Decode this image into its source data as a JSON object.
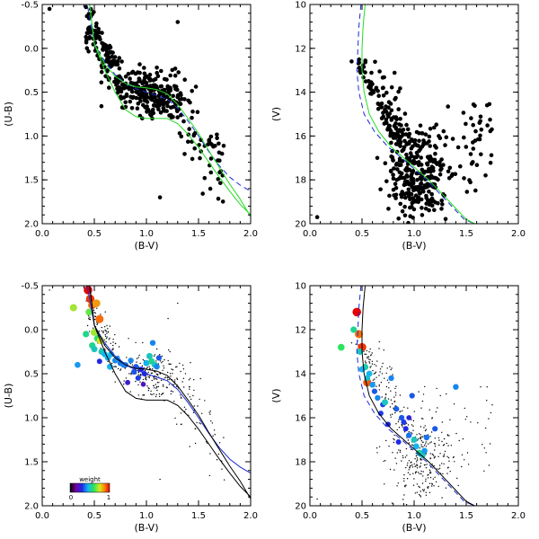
{
  "figure": {
    "description_free": true
  },
  "chart_data": [
    {
      "id": "ccd-ub-top",
      "type": "scatter",
      "title": "",
      "xlabel": "(B-V)",
      "ylabel": "(U-B)",
      "xlim": [
        0.0,
        2.0
      ],
      "ylim": [
        2.0,
        -0.5
      ],
      "xticks": [
        "0.0",
        "0.5",
        "1.0",
        "1.5",
        "2.0"
      ],
      "yticks": [
        "-0.5",
        "0.0",
        "0.5",
        "1.0",
        "1.5",
        "2.0"
      ],
      "series": [
        {
          "name": "stars",
          "style": "dots-large",
          "points": "cloud-ccd",
          "n": 420
        },
        {
          "name": "isochrone-blue",
          "style": "dashed",
          "color": "#1a2bd6",
          "x": [
            0.42,
            0.5,
            0.6,
            0.7,
            0.8,
            0.9,
            1.0,
            1.1,
            1.2,
            1.3,
            1.4,
            1.5,
            1.6,
            1.7,
            1.8,
            1.9,
            2.0
          ],
          "y": [
            -0.58,
            -0.05,
            0.15,
            0.3,
            0.4,
            0.46,
            0.5,
            0.54,
            0.58,
            0.68,
            0.83,
            1.0,
            1.18,
            1.34,
            1.47,
            1.56,
            1.63
          ]
        },
        {
          "name": "isochrone-green-upper",
          "style": "solid",
          "color": "#22dd22",
          "x": [
            0.45,
            0.5,
            0.6,
            0.7,
            0.8,
            0.9,
            1.0,
            1.1,
            1.2,
            1.3,
            1.4,
            1.5,
            1.6,
            1.7,
            1.8,
            1.9,
            2.0
          ],
          "y": [
            -0.55,
            -0.05,
            0.18,
            0.32,
            0.4,
            0.44,
            0.45,
            0.47,
            0.52,
            0.64,
            0.8,
            0.97,
            1.17,
            1.36,
            1.55,
            1.72,
            1.92
          ]
        },
        {
          "name": "isochrone-green-lower",
          "style": "solid",
          "color": "#22dd22",
          "x": [
            0.45,
            0.5,
            0.6,
            0.7,
            0.8,
            0.9,
            1.0,
            1.1,
            1.2,
            1.3,
            1.4,
            1.5,
            1.6,
            1.7,
            1.8,
            1.9,
            2.0
          ],
          "y": [
            -0.55,
            -0.05,
            0.25,
            0.5,
            0.7,
            0.78,
            0.8,
            0.8,
            0.8,
            0.86,
            0.98,
            1.13,
            1.3,
            1.47,
            1.63,
            1.78,
            1.9
          ]
        }
      ]
    },
    {
      "id": "cmd-v-top",
      "type": "scatter",
      "title": "",
      "xlabel": "(B-V)",
      "ylabel": "(V)",
      "xlim": [
        0.0,
        2.0
      ],
      "ylim": [
        20,
        10
      ],
      "xticks": [
        "0.0",
        "0.5",
        "1.0",
        "1.5",
        "2.0"
      ],
      "yticks": [
        "10",
        "12",
        "14",
        "16",
        "18",
        "20"
      ],
      "series": [
        {
          "name": "stars",
          "style": "dots-large",
          "points": "cloud-cmd",
          "n": 450
        },
        {
          "name": "isochrone-blue",
          "style": "dashed",
          "color": "#1a2bd6",
          "x": [
            0.49,
            0.47,
            0.46,
            0.45,
            0.47,
            0.52,
            0.62,
            0.75,
            0.88,
            1.0,
            1.12,
            1.24,
            1.36,
            1.48,
            1.58
          ],
          "y": [
            10.0,
            11.0,
            12.0,
            13.0,
            14.0,
            15.0,
            15.8,
            16.5,
            17.0,
            17.5,
            18.0,
            18.6,
            19.2,
            19.8,
            20.0
          ]
        },
        {
          "name": "isochrone-green",
          "style": "solid",
          "color": "#22dd22",
          "x": [
            0.53,
            0.51,
            0.5,
            0.5,
            0.52,
            0.57,
            0.66,
            0.78,
            0.9,
            1.02,
            1.14,
            1.26,
            1.38,
            1.5,
            1.58
          ],
          "y": [
            10.0,
            11.0,
            12.0,
            13.0,
            14.0,
            15.0,
            15.8,
            16.5,
            17.0,
            17.5,
            18.0,
            18.6,
            19.2,
            19.8,
            20.0
          ]
        }
      ]
    },
    {
      "id": "ccd-ub-bottom",
      "type": "scatter",
      "title": "",
      "xlabel": "(B-V)",
      "ylabel": "(U-B)",
      "xlim": [
        0.0,
        2.0
      ],
      "ylim": [
        2.0,
        -0.5
      ],
      "xticks": [
        "0.0",
        "0.5",
        "1.0",
        "1.5",
        "2.0"
      ],
      "yticks": [
        "-0.5",
        "0.0",
        "0.5",
        "1.0",
        "1.5",
        "2.0"
      ],
      "colorbar": {
        "label": "weight",
        "min": "0",
        "max": "1"
      },
      "series": [
        {
          "name": "field-stars",
          "style": "dots-small",
          "points": "cloud-ccd-fine",
          "n": 380
        },
        {
          "name": "weighted-members",
          "style": "colored",
          "x": [
            0.44,
            0.46,
            0.48,
            0.52,
            0.55,
            0.45,
            0.5,
            0.3,
            0.42,
            0.53,
            0.56,
            0.48,
            0.5,
            0.57,
            0.6,
            0.63,
            0.7,
            0.75,
            0.8,
            0.85,
            0.9,
            0.95,
            1.0,
            1.05,
            1.08,
            1.1,
            0.98,
            0.92,
            0.88,
            0.78,
            0.72,
            0.66,
            1.03,
            1.06,
            1.12,
            0.55,
            0.65,
            0.82,
            0.97,
            0.34
          ],
          "y": [
            -0.45,
            -0.35,
            -0.28,
            -0.3,
            -0.12,
            -0.2,
            0.03,
            -0.25,
            0.05,
            0.1,
            0.12,
            0.18,
            0.22,
            0.25,
            0.28,
            0.32,
            0.35,
            0.38,
            0.4,
            0.35,
            0.42,
            0.45,
            0.38,
            0.36,
            0.4,
            0.42,
            0.5,
            0.55,
            0.48,
            0.4,
            0.33,
            0.28,
            0.3,
            0.15,
            0.32,
            0.36,
            0.42,
            0.6,
            0.62,
            0.4
          ],
          "w": [
            1.0,
            0.95,
            0.9,
            0.85,
            0.9,
            0.65,
            0.7,
            0.7,
            0.55,
            0.6,
            0.75,
            0.55,
            0.5,
            0.5,
            0.45,
            0.45,
            0.4,
            0.38,
            0.36,
            0.4,
            0.35,
            0.3,
            0.45,
            0.55,
            0.5,
            0.4,
            0.3,
            0.32,
            0.35,
            0.4,
            0.42,
            0.45,
            0.5,
            0.4,
            0.35,
            0.3,
            0.45,
            0.25,
            0.22,
            0.42
          ]
        },
        {
          "name": "isochrone-blue",
          "style": "solid",
          "color": "#1a2bd6",
          "x": [
            0.42,
            0.5,
            0.6,
            0.7,
            0.8,
            0.9,
            1.0,
            1.1,
            1.2,
            1.3,
            1.4,
            1.5,
            1.6,
            1.7,
            1.8,
            1.9,
            2.0
          ],
          "y": [
            -0.58,
            -0.05,
            0.15,
            0.3,
            0.4,
            0.46,
            0.5,
            0.54,
            0.58,
            0.68,
            0.83,
            1.0,
            1.18,
            1.34,
            1.47,
            1.56,
            1.63
          ]
        },
        {
          "name": "isochrone-black-upper",
          "style": "solid",
          "color": "#000000",
          "x": [
            0.45,
            0.5,
            0.6,
            0.7,
            0.8,
            0.9,
            1.0,
            1.1,
            1.2,
            1.3,
            1.4,
            1.5,
            1.6,
            1.7,
            1.8,
            1.9,
            2.0
          ],
          "y": [
            -0.55,
            -0.05,
            0.18,
            0.32,
            0.4,
            0.44,
            0.45,
            0.47,
            0.52,
            0.64,
            0.8,
            0.97,
            1.17,
            1.36,
            1.55,
            1.72,
            1.92
          ]
        },
        {
          "name": "isochrone-black-lower",
          "style": "solid",
          "color": "#000000",
          "x": [
            0.45,
            0.5,
            0.6,
            0.7,
            0.8,
            0.9,
            1.0,
            1.1,
            1.2,
            1.3,
            1.4,
            1.5,
            1.6,
            1.7,
            1.8,
            1.9,
            2.0
          ],
          "y": [
            -0.55,
            -0.05,
            0.25,
            0.5,
            0.7,
            0.78,
            0.8,
            0.8,
            0.8,
            0.86,
            0.98,
            1.13,
            1.3,
            1.47,
            1.63,
            1.78,
            1.9
          ]
        }
      ]
    },
    {
      "id": "cmd-v-bottom",
      "type": "scatter",
      "title": "",
      "xlabel": "(B-V)",
      "ylabel": "(V)",
      "xlim": [
        0.0,
        2.0
      ],
      "ylim": [
        20,
        10
      ],
      "xticks": [
        "0.0",
        "0.5",
        "1.0",
        "1.5",
        "2.0"
      ],
      "yticks": [
        "10",
        "12",
        "14",
        "16",
        "18",
        "20"
      ],
      "series": [
        {
          "name": "field-stars",
          "style": "dots-small",
          "points": "cloud-cmd-fine",
          "n": 420
        },
        {
          "name": "weighted-members",
          "style": "colored",
          "x": [
            0.45,
            0.47,
            0.5,
            0.55,
            0.3,
            0.42,
            0.48,
            0.53,
            0.57,
            0.6,
            0.62,
            0.65,
            0.7,
            0.72,
            0.78,
            0.83,
            0.88,
            0.92,
            0.95,
            1.0,
            1.02,
            1.05,
            1.08,
            1.1,
            0.98,
            0.9,
            0.85,
            1.2,
            1.4,
            0.5,
            0.68,
            0.75,
            0.95,
            1.12,
            0.55
          ],
          "y": [
            11.2,
            12.2,
            12.8,
            14.4,
            12.8,
            12.0,
            13.0,
            13.7,
            14.0,
            14.5,
            14.8,
            15.1,
            15.4,
            15.3,
            14.2,
            15.6,
            16.0,
            16.5,
            16.8,
            17.0,
            17.3,
            17.6,
            17.7,
            17.5,
            15.0,
            16.2,
            17.1,
            16.5,
            14.6,
            13.8,
            15.8,
            16.3,
            16.0,
            16.9,
            14.2
          ],
          "w": [
            1.0,
            0.9,
            0.95,
            0.92,
            0.6,
            0.55,
            0.5,
            0.52,
            0.45,
            0.42,
            0.35,
            0.4,
            0.33,
            0.5,
            0.4,
            0.36,
            0.35,
            0.3,
            0.38,
            0.5,
            0.45,
            0.55,
            0.5,
            0.42,
            0.35,
            0.32,
            0.3,
            0.35,
            0.4,
            0.45,
            0.32,
            0.3,
            0.28,
            0.38,
            0.48
          ]
        },
        {
          "name": "isochrone-blue",
          "style": "dashed",
          "color": "#1a2bd6",
          "x": [
            0.49,
            0.47,
            0.46,
            0.45,
            0.47,
            0.52,
            0.62,
            0.75,
            0.88,
            1.0,
            1.12,
            1.24,
            1.36,
            1.48,
            1.58
          ],
          "y": [
            10.0,
            11.0,
            12.0,
            13.0,
            14.0,
            15.0,
            15.8,
            16.5,
            17.0,
            17.5,
            18.0,
            18.6,
            19.2,
            19.8,
            20.0
          ]
        },
        {
          "name": "isochrone-black",
          "style": "solid",
          "color": "#000000",
          "x": [
            0.53,
            0.51,
            0.5,
            0.5,
            0.52,
            0.57,
            0.66,
            0.78,
            0.9,
            1.02,
            1.14,
            1.26,
            1.38,
            1.5,
            1.58
          ],
          "y": [
            10.0,
            11.0,
            12.0,
            13.0,
            14.0,
            15.0,
            15.8,
            16.5,
            17.0,
            17.5,
            18.0,
            18.6,
            19.2,
            19.8,
            20.0
          ]
        }
      ]
    }
  ]
}
